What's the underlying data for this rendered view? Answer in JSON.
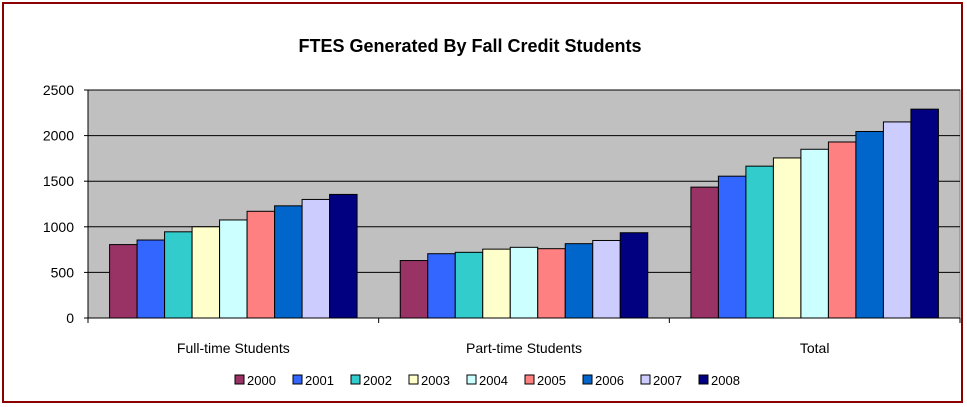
{
  "chart_data": {
    "type": "bar",
    "title": "FTES Generated By Fall Credit Students",
    "xlabel": "",
    "ylabel": "",
    "ylim": [
      0,
      2500
    ],
    "yticks": [
      0,
      500,
      1000,
      1500,
      2000,
      2500
    ],
    "grid": true,
    "legend_position": "bottom",
    "categories": [
      "Full-time Students",
      "Part-time Students",
      "Total"
    ],
    "series": [
      {
        "name": "2000",
        "color": "#993366",
        "values": [
          805,
          630,
          1435
        ]
      },
      {
        "name": "2001",
        "color": "#3366ff",
        "values": [
          855,
          705,
          1555
        ]
      },
      {
        "name": "2002",
        "color": "#33cccc",
        "values": [
          945,
          720,
          1665
        ]
      },
      {
        "name": "2003",
        "color": "#ffffcc",
        "values": [
          1000,
          755,
          1755
        ]
      },
      {
        "name": "2004",
        "color": "#ccffff",
        "values": [
          1075,
          775,
          1850
        ]
      },
      {
        "name": "2005",
        "color": "#ff8080",
        "values": [
          1170,
          760,
          1930
        ]
      },
      {
        "name": "2006",
        "color": "#0066cc",
        "values": [
          1230,
          815,
          2045
        ]
      },
      {
        "name": "2007",
        "color": "#ccccff",
        "values": [
          1300,
          850,
          2150
        ]
      },
      {
        "name": "2008",
        "color": "#000080",
        "values": [
          1355,
          935,
          2290
        ]
      }
    ]
  },
  "colors": {
    "plot_background": "#c0c0c0",
    "frame_border": "#8b0000"
  }
}
